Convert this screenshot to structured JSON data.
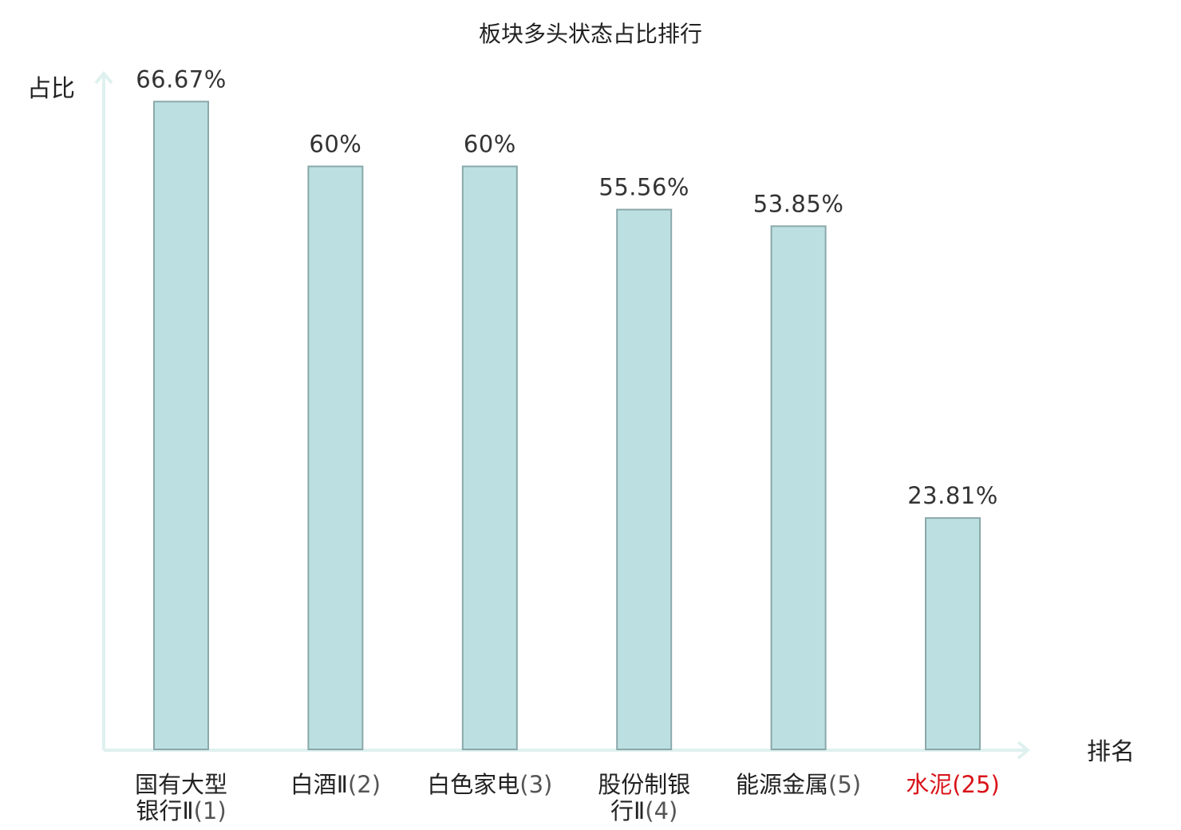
{
  "chart_data": {
    "type": "bar",
    "title": "板块多头状态占比排行",
    "ylabel": "占比",
    "xlabel": "排名",
    "ylim": [
      0,
      69.57
    ],
    "grid": false,
    "legend": "none",
    "bar_color": "#bce0e2",
    "bar_border_color": "#8aa8aa",
    "axis_color": "#dff1ef",
    "highlight_color": "#d9141a",
    "categories": [
      {
        "name_lines": [
          "国有大型",
          "银行Ⅱ"
        ],
        "rank": "(1)",
        "highlight": false
      },
      {
        "name_lines": [
          "白酒Ⅱ"
        ],
        "rank": "(2)",
        "highlight": false
      },
      {
        "name_lines": [
          "白色家电"
        ],
        "rank": "(3)",
        "highlight": false
      },
      {
        "name_lines": [
          "股份制银",
          "行Ⅱ"
        ],
        "rank": "(4)",
        "highlight": false
      },
      {
        "name_lines": [
          "能源金属"
        ],
        "rank": "(5)",
        "highlight": false
      },
      {
        "name_lines": [
          "水泥"
        ],
        "rank": "(25)",
        "highlight": true
      }
    ],
    "values": [
      66.67,
      60,
      60,
      55.56,
      53.85,
      23.81
    ],
    "value_labels": [
      "66.67%",
      "60%",
      "60%",
      "55.56%",
      "53.85%",
      "23.81%"
    ]
  }
}
